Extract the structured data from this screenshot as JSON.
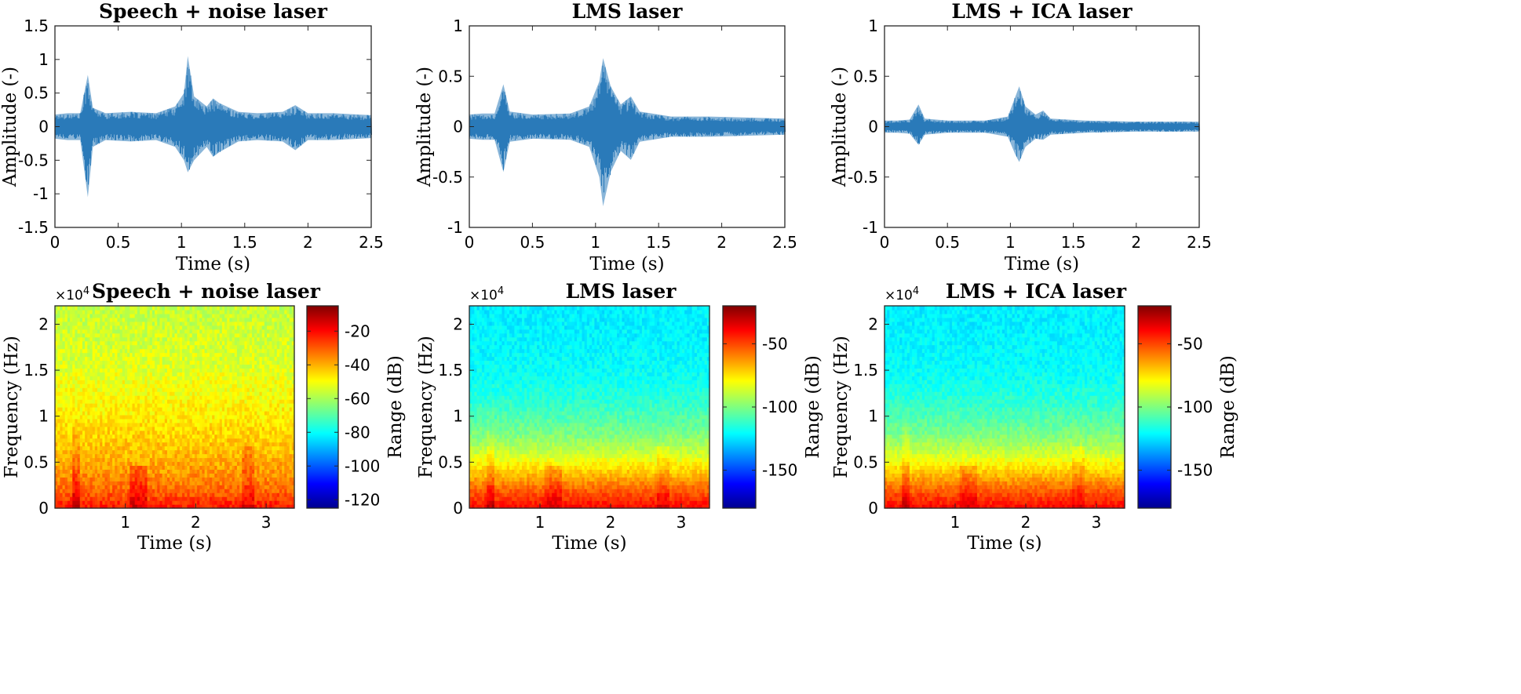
{
  "chart_data": [
    {
      "type": "line",
      "title": "Speech + noise laser",
      "xlabel": "Time (s)",
      "ylabel": "Amplitude (-)",
      "xlim": [
        0,
        2.5
      ],
      "ylim": [
        -1.5,
        1.5
      ],
      "xticks": [
        "0",
        "0.5",
        "1",
        "1.5",
        "2",
        "2.5"
      ],
      "yticks": [
        "-1.5",
        "-1",
        "-0.5",
        "0",
        "0.5",
        "1",
        "1.5"
      ],
      "color": "#2a7ab9",
      "series": [
        {
          "name": "waveform envelope",
          "x": [
            0,
            0.1,
            0.2,
            0.26,
            0.3,
            0.4,
            0.6,
            0.8,
            0.95,
            1.02,
            1.05,
            1.1,
            1.2,
            1.25,
            1.3,
            1.45,
            1.6,
            1.8,
            1.9,
            2.0,
            2.2,
            2.5
          ],
          "upper": [
            0.18,
            0.2,
            0.2,
            0.77,
            0.28,
            0.2,
            0.22,
            0.2,
            0.3,
            0.5,
            1.05,
            0.45,
            0.3,
            0.42,
            0.35,
            0.22,
            0.2,
            0.22,
            0.32,
            0.2,
            0.2,
            0.17
          ],
          "lower": [
            -0.18,
            -0.2,
            -0.2,
            -1.05,
            -0.3,
            -0.2,
            -0.22,
            -0.2,
            -0.3,
            -0.5,
            -0.68,
            -0.5,
            -0.3,
            -0.45,
            -0.38,
            -0.22,
            -0.2,
            -0.22,
            -0.35,
            -0.2,
            -0.2,
            -0.17
          ]
        }
      ]
    },
    {
      "type": "line",
      "title": "LMS laser",
      "xlabel": "Time (s)",
      "ylabel": "Amplitude (-)",
      "xlim": [
        0,
        2.5
      ],
      "ylim": [
        -1,
        1
      ],
      "xticks": [
        "0",
        "0.5",
        "1",
        "1.5",
        "2",
        "2.5"
      ],
      "yticks": [
        "-1",
        "-0.5",
        "0",
        "0.5",
        "1"
      ],
      "color": "#2a7ab9",
      "series": [
        {
          "name": "waveform envelope",
          "x": [
            0,
            0.1,
            0.2,
            0.27,
            0.32,
            0.5,
            0.8,
            0.95,
            1.03,
            1.06,
            1.12,
            1.2,
            1.28,
            1.35,
            1.6,
            1.9,
            2.2,
            2.5
          ],
          "upper": [
            0.12,
            0.13,
            0.13,
            0.42,
            0.15,
            0.12,
            0.13,
            0.2,
            0.45,
            0.68,
            0.4,
            0.22,
            0.3,
            0.15,
            0.1,
            0.1,
            0.09,
            0.08
          ],
          "lower": [
            -0.12,
            -0.13,
            -0.13,
            -0.45,
            -0.15,
            -0.12,
            -0.13,
            -0.2,
            -0.5,
            -0.79,
            -0.45,
            -0.24,
            -0.33,
            -0.15,
            -0.1,
            -0.1,
            -0.09,
            -0.08
          ]
        }
      ]
    },
    {
      "type": "line",
      "title": "LMS + ICA laser",
      "xlabel": "Time (s)",
      "ylabel": "Amplitude (-)",
      "xlim": [
        0,
        2.5
      ],
      "ylim": [
        -1,
        1
      ],
      "xticks": [
        "0",
        "0.5",
        "1",
        "1.5",
        "2",
        "2.5"
      ],
      "yticks": [
        "-1",
        "-0.5",
        "0",
        "0.5",
        "1"
      ],
      "color": "#2a7ab9",
      "series": [
        {
          "name": "waveform envelope",
          "x": [
            0,
            0.1,
            0.2,
            0.27,
            0.32,
            0.5,
            0.8,
            0.98,
            1.04,
            1.07,
            1.12,
            1.2,
            1.26,
            1.32,
            1.6,
            2.0,
            2.5
          ],
          "upper": [
            0.06,
            0.06,
            0.07,
            0.22,
            0.08,
            0.06,
            0.06,
            0.1,
            0.3,
            0.4,
            0.2,
            0.12,
            0.16,
            0.08,
            0.06,
            0.05,
            0.05
          ],
          "lower": [
            -0.06,
            -0.06,
            -0.07,
            -0.18,
            -0.08,
            -0.06,
            -0.06,
            -0.1,
            -0.28,
            -0.35,
            -0.2,
            -0.12,
            -0.13,
            -0.08,
            -0.06,
            -0.05,
            -0.05
          ]
        }
      ]
    },
    {
      "type": "heatmap",
      "title": "Speech + noise laser",
      "xlabel": "Time (s)",
      "ylabel": "Frequency (Hz)",
      "exponent": "×10",
      "exponent_power": "4",
      "xlim": [
        0,
        3.4
      ],
      "ylim": [
        0,
        2.2
      ],
      "xticks": [
        "1",
        "2",
        "3"
      ],
      "yticks": [
        "0",
        "0.5",
        "1",
        "1.5",
        "2"
      ],
      "colorbar_label": "Range (dB)",
      "colorbar_range": [
        -125,
        -5
      ],
      "colorbar_ticks": [
        "-20",
        "-40",
        "-60",
        "-80",
        "-100",
        "-120"
      ],
      "colorbar_tick_values": [
        -20,
        -40,
        -60,
        -80,
        -100,
        -120
      ],
      "rows_db_low_to_high_freq": [
        -22,
        -32,
        -38,
        -42,
        -45,
        -48,
        -50,
        -52,
        -54,
        -55,
        -56,
        -57
      ]
    },
    {
      "type": "heatmap",
      "title": "LMS laser",
      "xlabel": "Time (s)",
      "ylabel": "Frequency (Hz)",
      "exponent": "×10",
      "exponent_power": "4",
      "xlim": [
        0,
        3.4
      ],
      "ylim": [
        0,
        2.2
      ],
      "xticks": [
        "1",
        "2",
        "3"
      ],
      "yticks": [
        "0",
        "0.5",
        "1",
        "1.5",
        "2"
      ],
      "colorbar_label": "Range (dB)",
      "colorbar_range": [
        -180,
        -20
      ],
      "colorbar_ticks": [
        "-50",
        "-100",
        "-150"
      ],
      "colorbar_tick_values": [
        -50,
        -100,
        -150
      ],
      "rows_db_low_to_high_freq": [
        -40,
        -55,
        -72,
        -88,
        -100,
        -108,
        -114,
        -118,
        -120,
        -121,
        -122,
        -122
      ]
    },
    {
      "type": "heatmap",
      "title": "LMS + ICA laser",
      "xlabel": "Time (s)",
      "ylabel": "Frequency (Hz)",
      "exponent": "×10",
      "exponent_power": "4",
      "xlim": [
        0,
        3.4
      ],
      "ylim": [
        0,
        2.2
      ],
      "xticks": [
        "1",
        "2",
        "3"
      ],
      "yticks": [
        "0",
        "0.5",
        "1",
        "1.5",
        "2"
      ],
      "colorbar_label": "Range (dB)",
      "colorbar_range": [
        -180,
        -20
      ],
      "colorbar_ticks": [
        "-50",
        "-100",
        "-150"
      ],
      "colorbar_tick_values": [
        -50,
        -100,
        -150
      ],
      "rows_db_low_to_high_freq": [
        -40,
        -55,
        -72,
        -88,
        -100,
        -108,
        -114,
        -118,
        -120,
        -121,
        -122,
        -122
      ]
    }
  ]
}
